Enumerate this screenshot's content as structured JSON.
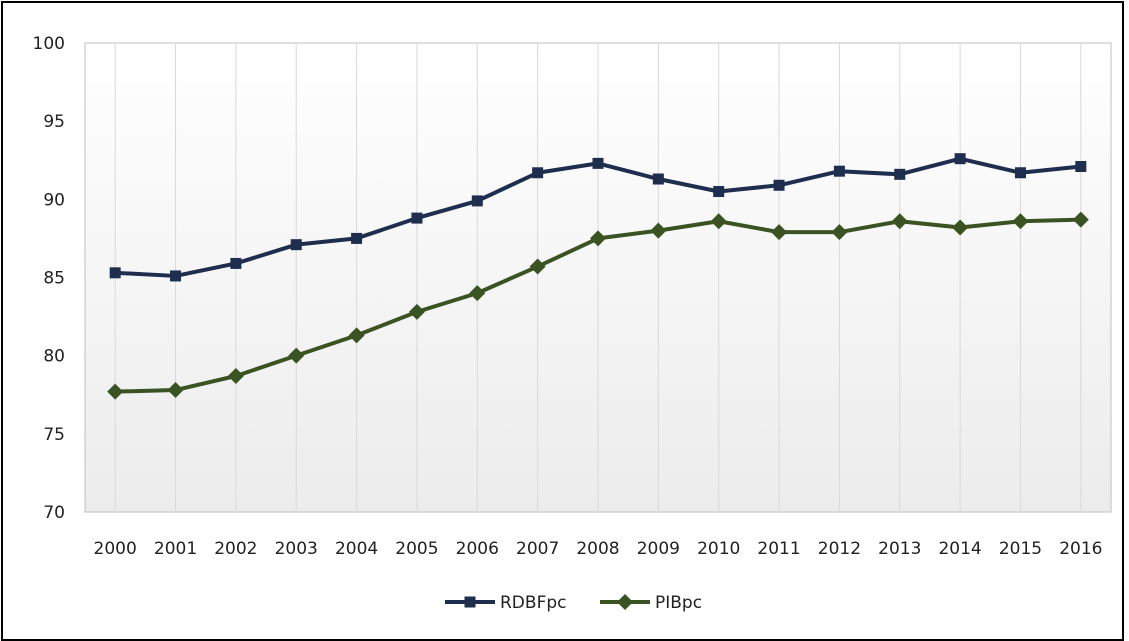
{
  "chart_data": {
    "type": "line",
    "x": [
      "2000",
      "2001",
      "2002",
      "2003",
      "2004",
      "2005",
      "2006",
      "2007",
      "2008",
      "2009",
      "2010",
      "2011",
      "2012",
      "2013",
      "2014",
      "2015",
      "2016"
    ],
    "ylim": [
      70,
      100
    ],
    "yticks": [
      70,
      75,
      80,
      85,
      90,
      95,
      100
    ],
    "grid": "vertical",
    "legend": "bottom",
    "series": [
      {
        "name": "RDBFpc",
        "color": "#1f2d4e",
        "marker": "square",
        "values": [
          85.3,
          85.1,
          85.9,
          87.1,
          87.5,
          88.8,
          89.9,
          91.7,
          92.3,
          91.3,
          90.5,
          90.9,
          91.8,
          91.6,
          92.6,
          91.7,
          92.1
        ]
      },
      {
        "name": "PIBpc",
        "color": "#3b5323",
        "marker": "diamond",
        "values": [
          77.7,
          77.8,
          78.7,
          80.0,
          81.3,
          82.8,
          84.0,
          85.7,
          87.5,
          88.0,
          88.6,
          87.9,
          87.9,
          88.6,
          88.2,
          88.6,
          88.7
        ]
      }
    ]
  }
}
